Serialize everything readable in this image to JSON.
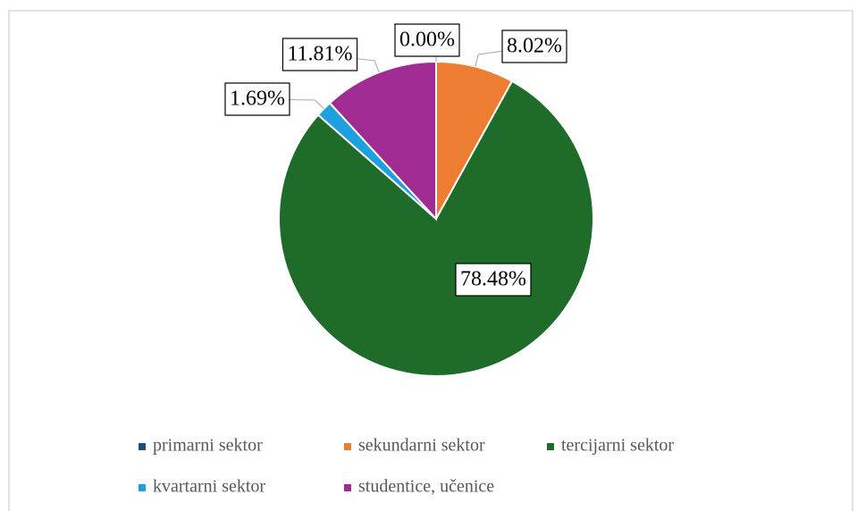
{
  "chart_data": {
    "type": "pie",
    "categories": [
      "primarni sektor",
      "sekundarni sektor",
      "tercijarni sektor",
      "kvartarni sektor",
      "studentice, učenice"
    ],
    "values": [
      0.0,
      8.02,
      78.48,
      1.69,
      11.81
    ],
    "value_labels": [
      "0.00%",
      "8.02%",
      "78.48%",
      "1.69%",
      "11.81%"
    ],
    "colors": [
      "#1f4e79",
      "#ed7d31",
      "#1e6b2a",
      "#1ea0e0",
      "#a02b93"
    ],
    "legend": "bottom"
  }
}
